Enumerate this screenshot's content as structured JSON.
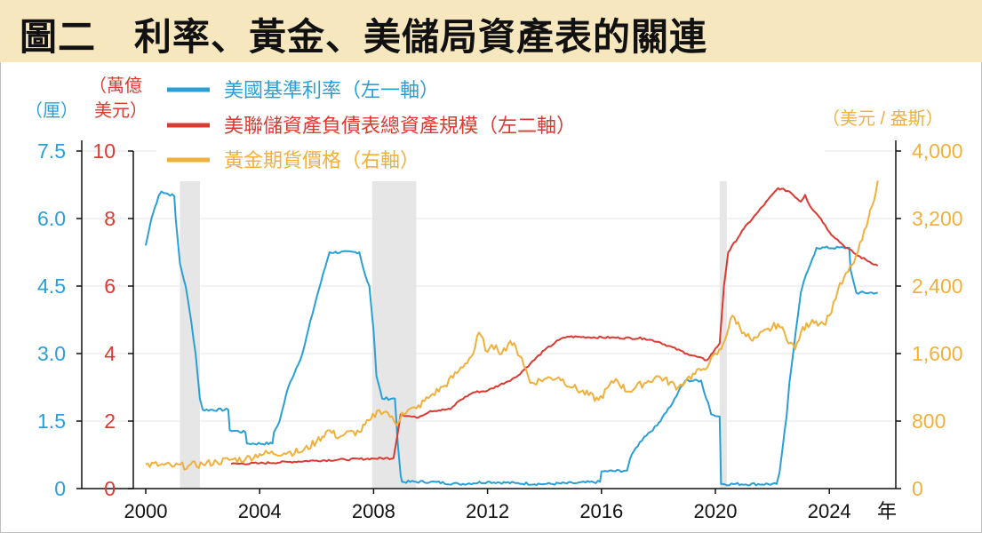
{
  "title": "圖二　利率、黃金、美儲局資產表的關連",
  "colors": {
    "rate": "#2a9fd6",
    "fed": "#d93a32",
    "gold": "#f0b03c",
    "title_bg": "#f6e7bf",
    "recession": "#e6e6e6"
  },
  "chart_data": {
    "type": "line",
    "x_axis": {
      "ticks": [
        "2000",
        "2004",
        "2008",
        "2012",
        "2016",
        "2020",
        "2024"
      ],
      "range": [
        2000,
        2026.5
      ],
      "unit": "年"
    },
    "y_axis_left1": {
      "unit": "（厘）",
      "ticks": [
        "7.5",
        "6.0",
        "4.5",
        "3.0",
        "1.5",
        "0"
      ],
      "range": [
        0,
        7.5
      ]
    },
    "y_axis_left2": {
      "unit_line1": "（萬億",
      "unit_line2": "美元）",
      "ticks": [
        "10",
        "8",
        "6",
        "4",
        "2",
        "0"
      ],
      "range": [
        0,
        10
      ]
    },
    "y_axis_right": {
      "unit": "（美元 / 盎斯）",
      "ticks": [
        "4,000",
        "3,200",
        "2,400",
        "1,600",
        "800",
        "0"
      ],
      "range": [
        0,
        4000
      ]
    },
    "recessions": [
      [
        2001.2,
        2001.9
      ],
      [
        2007.95,
        2009.5
      ],
      [
        2020.15,
        2020.4
      ]
    ],
    "series": [
      {
        "name": "美國基準利率（左一軸）",
        "axis": "left1",
        "points": [
          [
            2000.0,
            5.4
          ],
          [
            2000.1,
            5.7
          ],
          [
            2000.2,
            6.0
          ],
          [
            2000.45,
            6.5
          ],
          [
            2000.55,
            6.6
          ],
          [
            2001.0,
            6.5
          ],
          [
            2001.05,
            6.0
          ],
          [
            2001.2,
            5.0
          ],
          [
            2001.4,
            4.5
          ],
          [
            2001.6,
            3.7
          ],
          [
            2001.75,
            3.0
          ],
          [
            2001.9,
            2.0
          ],
          [
            2002.0,
            1.75
          ],
          [
            2002.9,
            1.75
          ],
          [
            2002.95,
            1.3
          ],
          [
            2003.5,
            1.25
          ],
          [
            2003.55,
            1.0
          ],
          [
            2004.45,
            1.0
          ],
          [
            2004.5,
            1.25
          ],
          [
            2004.7,
            1.5
          ],
          [
            2005.0,
            2.25
          ],
          [
            2005.5,
            3.0
          ],
          [
            2006.0,
            4.25
          ],
          [
            2006.45,
            5.25
          ],
          [
            2007.5,
            5.25
          ],
          [
            2007.7,
            4.75
          ],
          [
            2007.85,
            4.5
          ],
          [
            2008.0,
            3.5
          ],
          [
            2008.1,
            2.5
          ],
          [
            2008.3,
            2.0
          ],
          [
            2008.75,
            2.0
          ],
          [
            2008.8,
            1.5
          ],
          [
            2008.85,
            1.0
          ],
          [
            2008.95,
            0.3
          ],
          [
            2009.0,
            0.15
          ],
          [
            2010.0,
            0.15
          ],
          [
            2011.0,
            0.1
          ],
          [
            2012.0,
            0.15
          ],
          [
            2013.0,
            0.12
          ],
          [
            2014.0,
            0.1
          ],
          [
            2015.0,
            0.12
          ],
          [
            2015.95,
            0.15
          ],
          [
            2016.0,
            0.38
          ],
          [
            2016.9,
            0.4
          ],
          [
            2017.0,
            0.65
          ],
          [
            2017.2,
            0.9
          ],
          [
            2017.5,
            1.15
          ],
          [
            2017.95,
            1.4
          ],
          [
            2018.2,
            1.65
          ],
          [
            2018.5,
            1.9
          ],
          [
            2018.7,
            2.15
          ],
          [
            2018.95,
            2.4
          ],
          [
            2019.5,
            2.4
          ],
          [
            2019.6,
            2.15
          ],
          [
            2019.75,
            1.9
          ],
          [
            2019.85,
            1.65
          ],
          [
            2020.15,
            1.6
          ],
          [
            2020.2,
            0.1
          ],
          [
            2022.15,
            0.1
          ],
          [
            2022.25,
            0.35
          ],
          [
            2022.35,
            0.85
          ],
          [
            2022.5,
            1.6
          ],
          [
            2022.6,
            2.35
          ],
          [
            2022.75,
            3.1
          ],
          [
            2022.9,
            3.85
          ],
          [
            2023.0,
            4.35
          ],
          [
            2023.1,
            4.6
          ],
          [
            2023.25,
            4.85
          ],
          [
            2023.4,
            5.1
          ],
          [
            2023.55,
            5.35
          ],
          [
            2024.7,
            5.35
          ],
          [
            2024.75,
            4.85
          ],
          [
            2024.85,
            4.6
          ],
          [
            2024.95,
            4.35
          ],
          [
            2025.7,
            4.35
          ]
        ]
      },
      {
        "name": "美聯儲資產負債表總資產規模（左二軸）",
        "axis": "left2",
        "points": [
          [
            2003.0,
            0.73
          ],
          [
            2004.0,
            0.75
          ],
          [
            2005.0,
            0.79
          ],
          [
            2006.0,
            0.83
          ],
          [
            2007.0,
            0.86
          ],
          [
            2008.0,
            0.89
          ],
          [
            2008.7,
            0.9
          ],
          [
            2008.8,
            1.4
          ],
          [
            2008.95,
            2.2
          ],
          [
            2009.5,
            2.1
          ],
          [
            2010.0,
            2.3
          ],
          [
            2010.7,
            2.35
          ],
          [
            2011.0,
            2.6
          ],
          [
            2011.5,
            2.85
          ],
          [
            2012.0,
            2.9
          ],
          [
            2013.0,
            3.3
          ],
          [
            2013.5,
            3.7
          ],
          [
            2014.0,
            4.1
          ],
          [
            2014.5,
            4.4
          ],
          [
            2014.8,
            4.5
          ],
          [
            2017.5,
            4.45
          ],
          [
            2018.0,
            4.35
          ],
          [
            2019.0,
            4.0
          ],
          [
            2019.7,
            3.8
          ],
          [
            2020.15,
            4.3
          ],
          [
            2020.3,
            6.0
          ],
          [
            2020.45,
            7.0
          ],
          [
            2021.0,
            7.7
          ],
          [
            2021.5,
            8.2
          ],
          [
            2022.2,
            8.9
          ],
          [
            2022.6,
            8.8
          ],
          [
            2023.0,
            8.5
          ],
          [
            2023.15,
            8.7
          ],
          [
            2023.3,
            8.4
          ],
          [
            2023.7,
            8.0
          ],
          [
            2024.0,
            7.6
          ],
          [
            2024.5,
            7.2
          ],
          [
            2025.0,
            6.9
          ],
          [
            2025.7,
            6.6
          ]
        ]
      },
      {
        "name": "黃金期貨價格（右軸）",
        "axis": "right",
        "points": [
          [
            2000.0,
            285
          ],
          [
            2000.5,
            280
          ],
          [
            2001.0,
            265
          ],
          [
            2001.5,
            270
          ],
          [
            2002.0,
            290
          ],
          [
            2002.5,
            315
          ],
          [
            2003.0,
            345
          ],
          [
            2003.5,
            350
          ],
          [
            2004.0,
            410
          ],
          [
            2005.0,
            430
          ],
          [
            2005.5,
            440
          ],
          [
            2006.0,
            560
          ],
          [
            2006.4,
            690
          ],
          [
            2006.8,
            610
          ],
          [
            2007.0,
            650
          ],
          [
            2007.5,
            670
          ],
          [
            2007.9,
            820
          ],
          [
            2008.2,
            930
          ],
          [
            2008.5,
            900
          ],
          [
            2008.8,
            750
          ],
          [
            2009.0,
            900
          ],
          [
            2009.5,
            950
          ],
          [
            2010.0,
            1100
          ],
          [
            2010.5,
            1220
          ],
          [
            2011.0,
            1400
          ],
          [
            2011.5,
            1600
          ],
          [
            2011.7,
            1850
          ],
          [
            2012.0,
            1620
          ],
          [
            2012.3,
            1700
          ],
          [
            2012.5,
            1600
          ],
          [
            2012.8,
            1750
          ],
          [
            2013.2,
            1550
          ],
          [
            2013.5,
            1250
          ],
          [
            2014.0,
            1300
          ],
          [
            2014.5,
            1320
          ],
          [
            2015.0,
            1200
          ],
          [
            2015.9,
            1050
          ],
          [
            2016.5,
            1300
          ],
          [
            2016.9,
            1150
          ],
          [
            2017.5,
            1250
          ],
          [
            2018.0,
            1330
          ],
          [
            2018.7,
            1200
          ],
          [
            2019.0,
            1300
          ],
          [
            2019.5,
            1400
          ],
          [
            2019.8,
            1500
          ],
          [
            2020.2,
            1650
          ],
          [
            2020.6,
            2050
          ],
          [
            2021.0,
            1850
          ],
          [
            2021.3,
            1750
          ],
          [
            2021.5,
            1800
          ],
          [
            2022.2,
            1950
          ],
          [
            2022.8,
            1650
          ],
          [
            2023.0,
            1850
          ],
          [
            2023.4,
            2000
          ],
          [
            2023.8,
            1950
          ],
          [
            2024.0,
            2050
          ],
          [
            2024.3,
            2350
          ],
          [
            2024.8,
            2650
          ],
          [
            2025.0,
            2800
          ],
          [
            2025.3,
            3100
          ],
          [
            2025.5,
            3350
          ],
          [
            2025.7,
            3650
          ]
        ]
      }
    ]
  }
}
